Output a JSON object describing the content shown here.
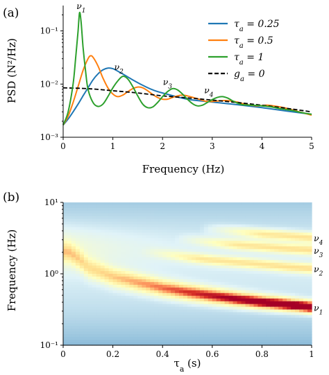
{
  "chart_data": [
    {
      "panel_label": "(a)",
      "type": "line",
      "xlabel": "Frequency (Hz)",
      "ylabel": "PSD (N²/Hz)",
      "xlim": [
        0,
        5
      ],
      "ylim": [
        0.001,
        0.3
      ],
      "yscale": "log",
      "grid": false,
      "legend_position": "top-right",
      "x_ticks": [
        "0",
        "1",
        "2",
        "3",
        "4",
        "5"
      ],
      "y_ticks": [
        "10⁻³",
        "10⁻²",
        "10⁻¹"
      ],
      "series": [
        {
          "name": "τa = 0.25",
          "color": "#1f77b4",
          "style": "solid",
          "x": [
            0,
            0.1,
            0.2,
            0.3,
            0.4,
            0.5,
            0.6,
            0.7,
            0.8,
            0.9,
            1.0,
            1.1,
            1.2,
            1.4,
            1.6,
            1.8,
            2.0,
            2.5,
            3.0,
            3.5,
            4.0,
            4.5,
            5.0
          ],
          "y": [
            0.0017,
            0.0022,
            0.003,
            0.0042,
            0.006,
            0.0085,
            0.012,
            0.0155,
            0.0185,
            0.02,
            0.0195,
            0.0175,
            0.0155,
            0.012,
            0.0095,
            0.0078,
            0.0068,
            0.0052,
            0.0046,
            0.0041,
            0.0036,
            0.0031,
            0.0027
          ]
        },
        {
          "name": "τa = 0.5",
          "color": "#ff7f0e",
          "style": "solid",
          "x": [
            0,
            0.1,
            0.2,
            0.3,
            0.4,
            0.5,
            0.55,
            0.6,
            0.7,
            0.8,
            0.9,
            1.0,
            1.1,
            1.2,
            1.3,
            1.4,
            1.5,
            1.6,
            1.7,
            1.8,
            1.9,
            2.0,
            2.1,
            2.2,
            2.3,
            2.4,
            2.5,
            2.7,
            2.9,
            3.1,
            3.3,
            3.5,
            3.7,
            3.9,
            4.1,
            4.3,
            4.5,
            4.7,
            5.0
          ],
          "y": [
            0.0017,
            0.0025,
            0.0045,
            0.009,
            0.018,
            0.03,
            0.034,
            0.032,
            0.022,
            0.013,
            0.0085,
            0.0065,
            0.0058,
            0.0062,
            0.0072,
            0.0082,
            0.0088,
            0.0085,
            0.0075,
            0.0064,
            0.0056,
            0.0052,
            0.0052,
            0.0056,
            0.006,
            0.0062,
            0.006,
            0.0053,
            0.0047,
            0.0048,
            0.0049,
            0.0046,
            0.0041,
            0.0039,
            0.004,
            0.0038,
            0.0035,
            0.0031,
            0.0026
          ]
        },
        {
          "name": "τa = 1",
          "color": "#2ca02c",
          "style": "solid",
          "x": [
            0,
            0.1,
            0.2,
            0.25,
            0.3,
            0.33,
            0.36,
            0.4,
            0.45,
            0.5,
            0.6,
            0.7,
            0.8,
            0.9,
            1.0,
            1.1,
            1.2,
            1.3,
            1.4,
            1.5,
            1.6,
            1.7,
            1.8,
            1.9,
            2.0,
            2.1,
            2.2,
            2.3,
            2.4,
            2.5,
            2.6,
            2.7,
            2.8,
            2.9,
            3.0,
            3.1,
            3.2,
            3.3,
            3.4,
            3.5,
            3.6,
            3.8,
            4.0,
            4.2,
            4.4,
            4.6,
            4.8,
            5.0
          ],
          "y": [
            0.0017,
            0.003,
            0.01,
            0.03,
            0.1,
            0.22,
            0.15,
            0.05,
            0.018,
            0.008,
            0.0045,
            0.0038,
            0.0042,
            0.0058,
            0.0085,
            0.0115,
            0.014,
            0.0125,
            0.009,
            0.006,
            0.0042,
            0.0036,
            0.0037,
            0.0045,
            0.0058,
            0.0072,
            0.0082,
            0.0078,
            0.0065,
            0.0052,
            0.0043,
            0.0039,
            0.004,
            0.0045,
            0.0051,
            0.0056,
            0.0058,
            0.0055,
            0.0049,
            0.0044,
            0.0041,
            0.004,
            0.0039,
            0.0037,
            0.0034,
            0.0032,
            0.0029,
            0.0027
          ]
        },
        {
          "name": "ga = 0",
          "color": "#000000",
          "style": "dashed",
          "x": [
            0,
            0.5,
            1.0,
            1.5,
            2.0,
            2.5,
            3.0,
            3.5,
            4.0,
            4.5,
            5.0
          ],
          "y": [
            0.0085,
            0.0082,
            0.0075,
            0.0068,
            0.006,
            0.0055,
            0.005,
            0.0045,
            0.004,
            0.0035,
            0.003
          ]
        }
      ],
      "annotations": [
        {
          "text": "ν1",
          "x": 0.36,
          "y": 0.26
        },
        {
          "text": "ν2",
          "x": 1.12,
          "y": 0.0185
        },
        {
          "text": "ν3",
          "x": 2.1,
          "y": 0.0097
        },
        {
          "text": "ν4",
          "x": 2.93,
          "y": 0.0067
        }
      ]
    },
    {
      "panel_label": "(b)",
      "type": "heatmap",
      "xlabel": "τa (s)",
      "ylabel": "Frequency (Hz)",
      "xlim": [
        0,
        1
      ],
      "ylim": [
        0.1,
        10
      ],
      "yscale": "log",
      "colormap": "RdYlBu_r",
      "x_ticks": [
        "0",
        "0.2",
        "0.4",
        "0.6",
        "0.8",
        "1"
      ],
      "y_ticks": [
        "10⁻¹",
        "10⁰",
        "10¹"
      ],
      "ridges": [
        {
          "label": "ν1",
          "tau": [
            0.02,
            0.1,
            0.2,
            0.3,
            0.4,
            0.5,
            0.6,
            0.7,
            0.8,
            0.9,
            1.0
          ],
          "freq": [
            2.0,
            1.2,
            0.9,
            0.75,
            0.63,
            0.55,
            0.49,
            0.44,
            0.4,
            0.37,
            0.34
          ]
        },
        {
          "label": "ν2",
          "tau": [
            0.35,
            0.5,
            0.6,
            0.7,
            0.8,
            0.9,
            1.0
          ],
          "freq": [
            2.0,
            1.7,
            1.55,
            1.45,
            1.35,
            1.25,
            1.18
          ]
        },
        {
          "label": "ν3",
          "tau": [
            0.5,
            0.6,
            0.7,
            0.8,
            0.9,
            1.0
          ],
          "freq": [
            3.0,
            2.75,
            2.55,
            2.4,
            2.25,
            2.15
          ]
        },
        {
          "label": "ν4",
          "tau": [
            0.6,
            0.7,
            0.8,
            0.9,
            1.0
          ],
          "freq": [
            4.2,
            3.9,
            3.6,
            3.4,
            3.2
          ]
        }
      ],
      "colors": {
        "low": "#4575b4",
        "mid": "#ffffbf",
        "high": "#a50026"
      }
    }
  ]
}
